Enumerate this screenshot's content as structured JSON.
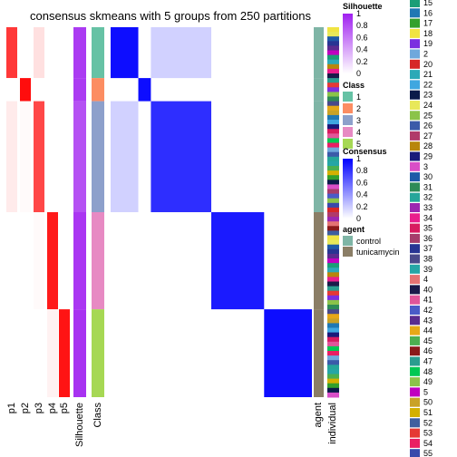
{
  "chart_data": {
    "type": "heatmap",
    "title": "consensus skmeans with 5 groups from 250 partitions",
    "annotation_columns_left": [
      "p1",
      "p2",
      "p3",
      "p4",
      "p5",
      "Silhouette",
      "Class"
    ],
    "annotation_columns_right": [
      "agent",
      "individual"
    ],
    "class_blocks": [
      {
        "class": "1",
        "size": 11,
        "membership": [
          0.78,
          0.0,
          0.12,
          0.0,
          0.0
        ],
        "silhouette": 0.88,
        "agent": "control"
      },
      {
        "class": "2",
        "size": 5,
        "membership": [
          0.0,
          0.95,
          0.0,
          0.0,
          0.0
        ],
        "silhouette": 0.88,
        "agent": "control"
      },
      {
        "class": "3",
        "size": 24,
        "membership": [
          0.08,
          0.02,
          0.72,
          0.0,
          0.0
        ],
        "silhouette": 0.78,
        "agent": "control"
      },
      {
        "class": "4",
        "size": 21,
        "membership": [
          0.0,
          0.0,
          0.02,
          0.9,
          0.0
        ],
        "silhouette": 0.9,
        "agent": "tunicamycin"
      },
      {
        "class": "5",
        "size": 19,
        "membership": [
          0.0,
          0.0,
          0.0,
          0.05,
          0.92
        ],
        "silhouette": 0.92,
        "agent": "tunicamycin"
      }
    ],
    "consensus_within_block": [
      0.95,
      0.95,
      0.82,
      0.9,
      0.95
    ],
    "legend_silhouette": {
      "title": "Silhouette",
      "ticks": [
        "1",
        "0.8",
        "0.6",
        "0.4",
        "0.2",
        "0"
      ]
    },
    "legend_class": {
      "title": "Class",
      "items": [
        {
          "label": "1",
          "color": "#66C2A5"
        },
        {
          "label": "2",
          "color": "#FC8D62"
        },
        {
          "label": "3",
          "color": "#8DA0CB"
        },
        {
          "label": "4",
          "color": "#E78AC3"
        },
        {
          "label": "5",
          "color": "#A6D854"
        }
      ]
    },
    "legend_consensus": {
      "title": "Consensus",
      "ticks": [
        "1",
        "0.8",
        "0.6",
        "0.4",
        "0.2",
        "0"
      ]
    },
    "legend_agent": {
      "title": "agent",
      "items": [
        {
          "label": "control",
          "color": "#7FB5A6"
        },
        {
          "label": "tunicamycin",
          "color": "#8B7E66"
        }
      ]
    },
    "legend_individual": [
      {
        "label": "15",
        "color": "#1B9E77"
      },
      {
        "label": "16",
        "color": "#1F78B4"
      },
      {
        "label": "17",
        "color": "#33A02C"
      },
      {
        "label": "18",
        "color": "#F0E442"
      },
      {
        "label": "19",
        "color": "#7B2FE0"
      },
      {
        "label": "2",
        "color": "#6FA8DC"
      },
      {
        "label": "20",
        "color": "#D62728"
      },
      {
        "label": "21",
        "color": "#2CA9B7"
      },
      {
        "label": "22",
        "color": "#3FA7E0"
      },
      {
        "label": "23",
        "color": "#0B1A4A"
      },
      {
        "label": "24",
        "color": "#E8E85A"
      },
      {
        "label": "25",
        "color": "#8BC34A"
      },
      {
        "label": "26",
        "color": "#3B5BA9"
      },
      {
        "label": "27",
        "color": "#B03A6A"
      },
      {
        "label": "28",
        "color": "#B8860B"
      },
      {
        "label": "29",
        "color": "#1A1A7A"
      },
      {
        "label": "3",
        "color": "#D94FC7"
      },
      {
        "label": "30",
        "color": "#1E5AA8"
      },
      {
        "label": "31",
        "color": "#2E8B57"
      },
      {
        "label": "32",
        "color": "#26A69A"
      },
      {
        "label": "33",
        "color": "#9C27B0"
      },
      {
        "label": "34",
        "color": "#E91E8C"
      },
      {
        "label": "35",
        "color": "#D81B60"
      },
      {
        "label": "36",
        "color": "#A63D6B"
      },
      {
        "label": "37",
        "color": "#283593"
      },
      {
        "label": "38",
        "color": "#4A4A8A"
      },
      {
        "label": "39",
        "color": "#26A6A6"
      },
      {
        "label": "4",
        "color": "#E57373"
      },
      {
        "label": "40",
        "color": "#1A1A4A"
      },
      {
        "label": "41",
        "color": "#E0559A"
      },
      {
        "label": "42",
        "color": "#4A5BC7"
      },
      {
        "label": "43",
        "color": "#5B2C8F"
      },
      {
        "label": "44",
        "color": "#E6A817"
      },
      {
        "label": "45",
        "color": "#4CAF50"
      },
      {
        "label": "46",
        "color": "#8B1A1A"
      },
      {
        "label": "47",
        "color": "#2A9D8F"
      },
      {
        "label": "48",
        "color": "#00C853"
      },
      {
        "label": "49",
        "color": "#8BC34A"
      },
      {
        "label": "5",
        "color": "#C000C0"
      },
      {
        "label": "50",
        "color": "#C9A227"
      },
      {
        "label": "51",
        "color": "#D4B000"
      },
      {
        "label": "52",
        "color": "#3F5F9F"
      },
      {
        "label": "53",
        "color": "#E53935"
      },
      {
        "label": "54",
        "color": "#E91E63"
      },
      {
        "label": "55",
        "color": "#3949AB"
      }
    ]
  }
}
